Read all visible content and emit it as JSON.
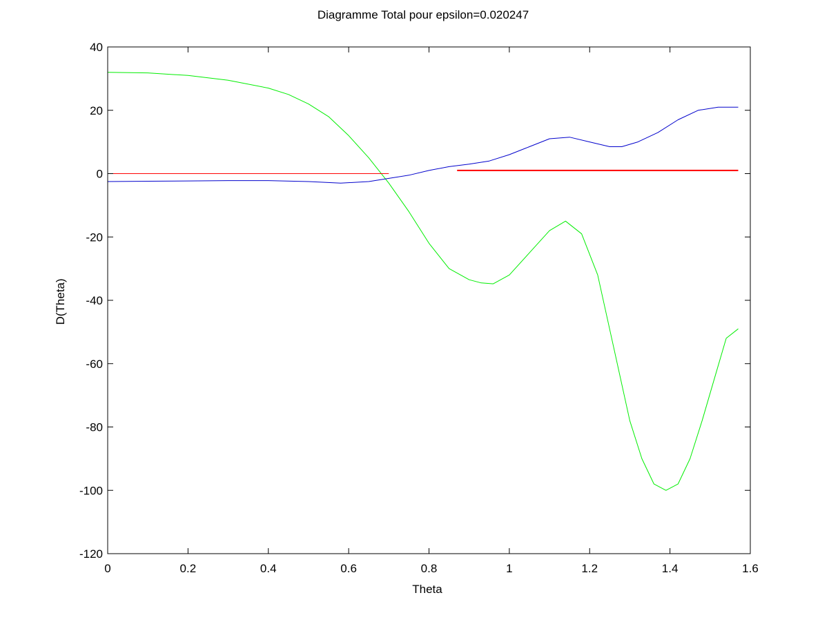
{
  "chart_data": {
    "type": "line",
    "title": "Diagramme Total pour epsilon=0.020247",
    "xlabel": "Theta",
    "ylabel": "D(Theta)",
    "xlim": [
      0,
      1.6
    ],
    "ylim": [
      -120,
      40
    ],
    "x_ticks": [
      0,
      0.2,
      0.4,
      0.6,
      0.8,
      1,
      1.2,
      1.4,
      1.6
    ],
    "x_tick_labels": [
      "0",
      "0.2",
      "0.4",
      "0.6",
      "0.8",
      "1",
      "1.2",
      "1.4",
      "1.6"
    ],
    "y_ticks": [
      40,
      20,
      0,
      -20,
      -40,
      -60,
      -80,
      -100,
      -120
    ],
    "y_tick_labels": [
      "40",
      "20",
      "0",
      "-20",
      "-40",
      "-60",
      "-80",
      "-100",
      "-120"
    ],
    "grid": false,
    "box": true,
    "series": [
      {
        "color": "#00ee00",
        "width": 1,
        "x": [
          0,
          0.1,
          0.2,
          0.3,
          0.4,
          0.45,
          0.5,
          0.55,
          0.6,
          0.65,
          0.7,
          0.75,
          0.8,
          0.85,
          0.9,
          0.93,
          0.96,
          1.0,
          1.05,
          1.1,
          1.14,
          1.18,
          1.22,
          1.26,
          1.3,
          1.33,
          1.36,
          1.39,
          1.42,
          1.45,
          1.48,
          1.51,
          1.54,
          1.57
        ],
        "y": [
          32,
          31.8,
          31,
          29.5,
          27,
          25,
          22,
          18,
          12,
          5,
          -3,
          -12,
          -22,
          -30,
          -33.5,
          -34.5,
          -34.8,
          -32,
          -25,
          -18,
          -15,
          -19,
          -32,
          -55,
          -78,
          -90,
          -98,
          -100,
          -98,
          -90,
          -78,
          -65,
          -52,
          -49
        ]
      },
      {
        "color": "#0000cc",
        "width": 1,
        "x": [
          0,
          0.1,
          0.2,
          0.3,
          0.4,
          0.5,
          0.58,
          0.65,
          0.7,
          0.75,
          0.8,
          0.85,
          0.9,
          0.95,
          1.0,
          1.05,
          1.1,
          1.15,
          1.2,
          1.25,
          1.28,
          1.32,
          1.37,
          1.42,
          1.47,
          1.52,
          1.57
        ],
        "y": [
          -2.5,
          -2.4,
          -2.3,
          -2.2,
          -2.2,
          -2.5,
          -3,
          -2.5,
          -1.5,
          -0.5,
          1,
          2.2,
          3,
          4,
          6,
          8.5,
          11,
          11.5,
          10,
          8.5,
          8.5,
          10,
          13,
          17,
          20,
          21,
          21
        ]
      },
      {
        "color": "#ff0000",
        "width": 1,
        "x": [
          0,
          0.7
        ],
        "y": [
          0,
          0
        ]
      },
      {
        "color": "#ff0000",
        "width": 2,
        "x": [
          0.87,
          1.57
        ],
        "y": [
          1,
          1
        ]
      }
    ]
  }
}
